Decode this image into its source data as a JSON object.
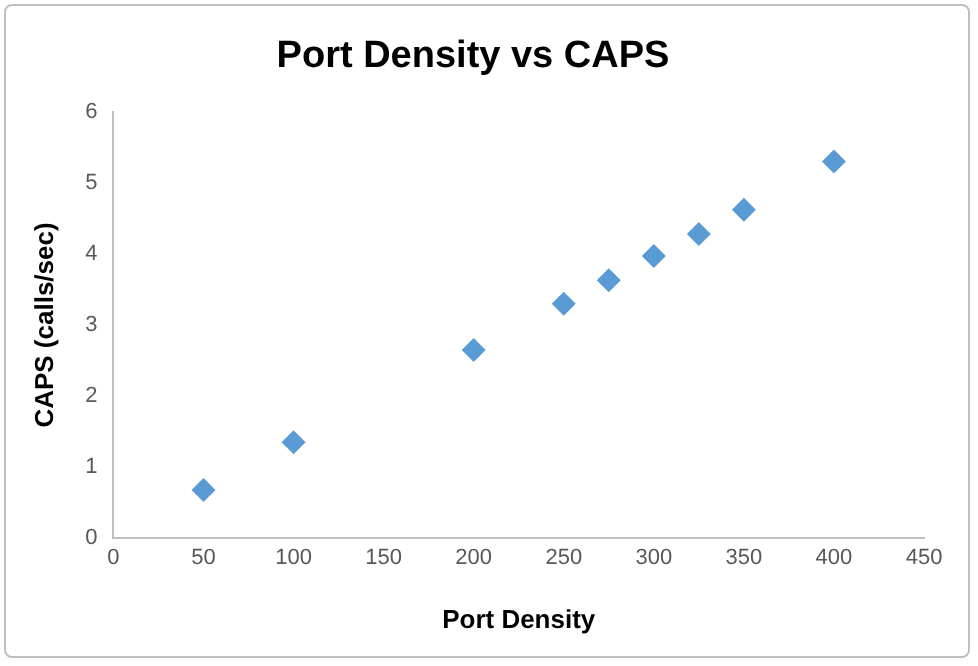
{
  "chart_data": {
    "type": "scatter",
    "title": "Port Density vs CAPS",
    "xlabel": "Port Density",
    "ylabel": "CAPS (calls/sec)",
    "x": [
      50,
      100,
      200,
      250,
      275,
      300,
      325,
      350,
      400
    ],
    "series": [
      {
        "color": "#5b9bd5",
        "values": [
          0.68,
          1.35,
          2.65,
          3.3,
          3.63,
          3.97,
          4.28,
          4.62,
          5.3
        ]
      }
    ],
    "xlim": [
      0,
      450
    ],
    "xticks": [
      0,
      50,
      100,
      150,
      200,
      250,
      300,
      350,
      400,
      450
    ],
    "ylim": [
      0,
      6
    ],
    "yticks": [
      0,
      1,
      2,
      3,
      4,
      5,
      6
    ],
    "grid": false,
    "legend": false,
    "marker": "diamond"
  }
}
